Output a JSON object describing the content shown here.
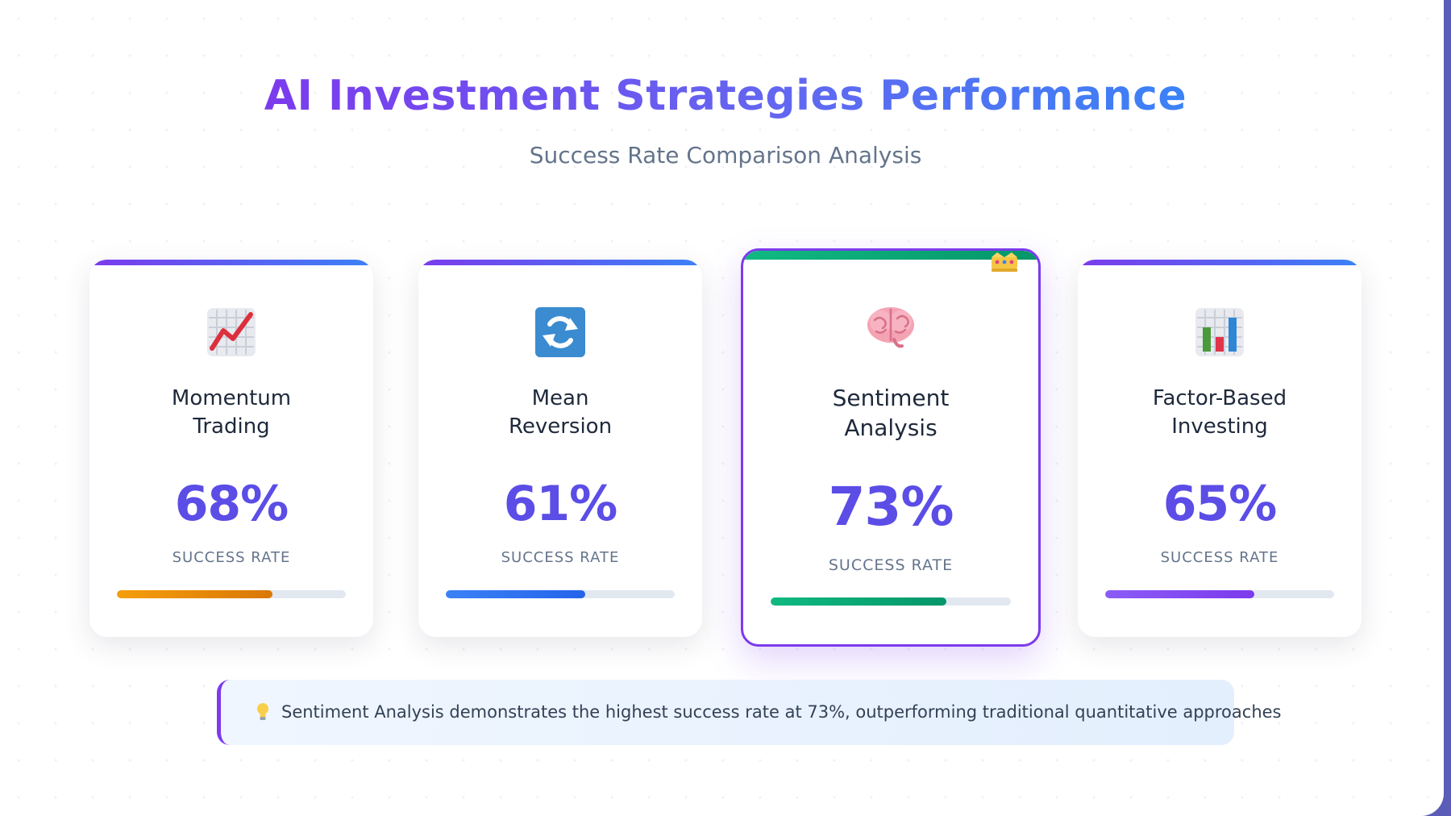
{
  "header": {
    "title": "AI Investment Strategies Performance",
    "subtitle": "Success Rate Comparison Analysis"
  },
  "chart_data": {
    "type": "bar",
    "title": "AI Investment Strategies Performance",
    "subtitle": "Success Rate Comparison Analysis",
    "categories": [
      "Momentum Trading",
      "Mean Reversion",
      "Sentiment Analysis",
      "Factor-Based Investing"
    ],
    "values": [
      68,
      61,
      73,
      65
    ],
    "unit": "%",
    "value_label": "SUCCESS RATE",
    "ylim": [
      0,
      100
    ],
    "highlighted": "Sentiment Analysis"
  },
  "cards": [
    {
      "name_lines": [
        "Momentum",
        "Trading"
      ],
      "value_text": "68%",
      "label": "SUCCESS RATE",
      "icon": "chart-increasing-icon",
      "bar_color_from": "#f59e0b",
      "bar_color_to": "#d97706"
    },
    {
      "name_lines": [
        "Mean",
        "Reversion"
      ],
      "value_text": "61%",
      "label": "SUCCESS RATE",
      "icon": "arrows-cycle-icon",
      "bar_color_from": "#3b82f6",
      "bar_color_to": "#2563eb"
    },
    {
      "name_lines": [
        "Sentiment",
        "Analysis"
      ],
      "value_text": "73%",
      "label": "SUCCESS RATE",
      "icon": "brain-icon",
      "bar_color_from": "#10b981",
      "bar_color_to": "#059669"
    },
    {
      "name_lines": [
        "Factor-Based",
        "Investing"
      ],
      "value_text": "65%",
      "label": "SUCCESS RATE",
      "icon": "bar-chart-icon",
      "bar_color_from": "#8b5cf6",
      "bar_color_to": "#7c3aed"
    }
  ],
  "insight": {
    "icon": "lightbulb-icon",
    "text": "Sentiment Analysis demonstrates the highest success rate at 73%, outperforming traditional quantitative approaches"
  },
  "colors": {
    "accent_purple": "#7c3aed",
    "accent_blue": "#3b82f6",
    "value_text": "#5b4de6"
  }
}
